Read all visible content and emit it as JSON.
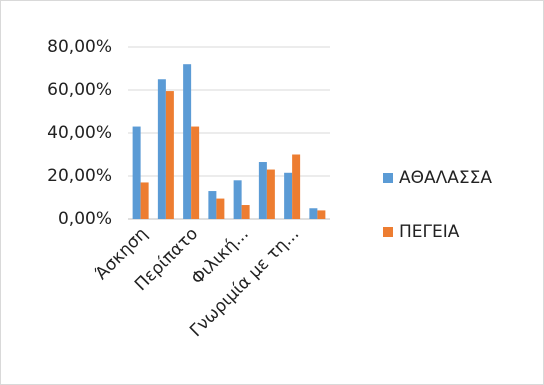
{
  "chart_data": {
    "type": "bar",
    "categories": [
      "Άσκηση",
      null,
      "Περίπατο",
      null,
      "Φιλική...",
      null,
      "Γνωριμία με τη...",
      null
    ],
    "series": [
      {
        "name": "ΑΘΑΛΑΣΣΑ",
        "color": "#5b9bd5",
        "values": [
          43,
          65,
          72,
          13,
          18,
          26.5,
          21.5,
          5
        ]
      },
      {
        "name": "ΠΕΓΕΙΑ",
        "color": "#ed7d31",
        "values": [
          17,
          59.5,
          43,
          9.5,
          6.5,
          23,
          30,
          4
        ]
      }
    ],
    "ylim": [
      0,
      80
    ],
    "yticks": [
      {
        "value": 0,
        "label": "0,00%"
      },
      {
        "value": 20,
        "label": "20,00%"
      },
      {
        "value": 40,
        "label": "40,00%"
      },
      {
        "value": 60,
        "label": "60,00%"
      },
      {
        "value": 80,
        "label": "80,00%"
      }
    ],
    "grid": true,
    "legend": "right"
  }
}
